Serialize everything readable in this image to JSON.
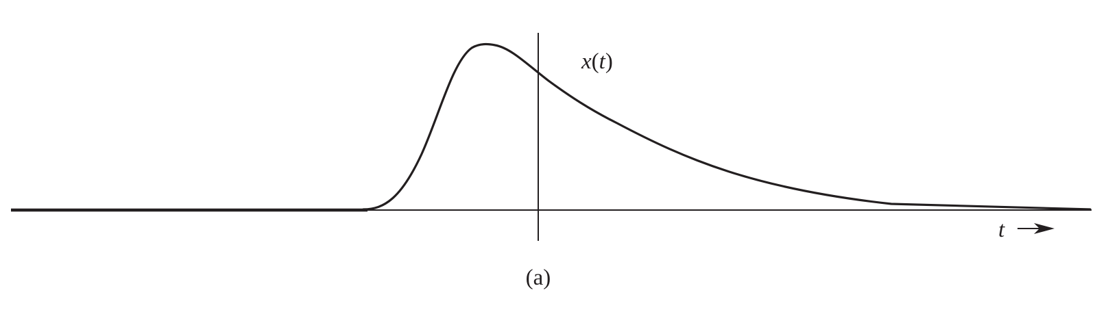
{
  "figure": {
    "signal_label_var": "x",
    "signal_label_arg": "t",
    "time_axis_label": "t",
    "caption": "(a)"
  },
  "style": {
    "ink_color": "#231f20",
    "background": "#ffffff"
  }
}
